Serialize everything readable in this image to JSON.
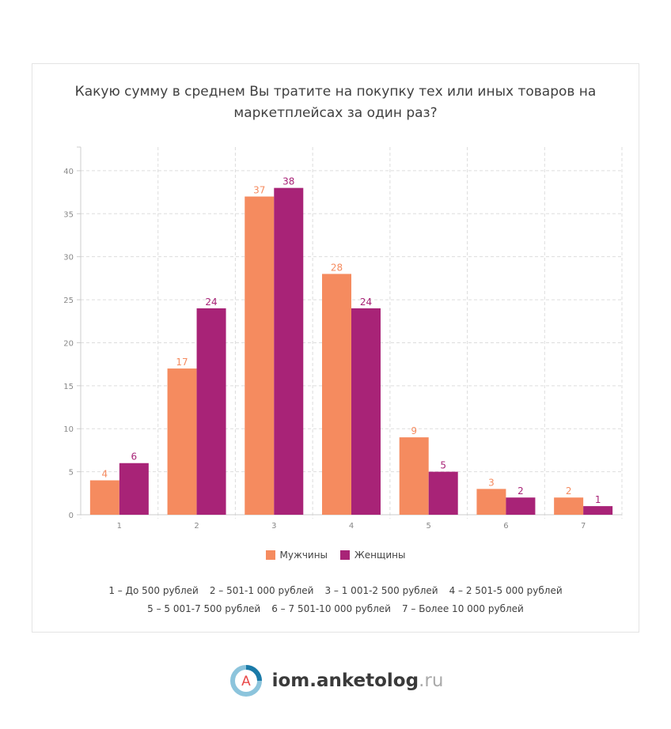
{
  "chart_data": {
    "type": "bar",
    "title": "Какую сумму в среднем Вы тратите на покупку тех или иных товаров на маркетплейсах за один раз?",
    "categories": [
      "1",
      "2",
      "3",
      "4",
      "5",
      "6",
      "7"
    ],
    "series": [
      {
        "name": "Мужчины",
        "color": "#f58b5f",
        "values": [
          4,
          17,
          37,
          28,
          9,
          3,
          2
        ]
      },
      {
        "name": "Женщины",
        "color": "#a82377",
        "values": [
          6,
          24,
          38,
          24,
          5,
          2,
          1
        ]
      }
    ],
    "yticks": [
      0,
      5,
      10,
      15,
      20,
      25,
      30,
      35,
      40
    ],
    "ylim": [
      0,
      42.75
    ],
    "grid": true,
    "legend": "bottom"
  },
  "notes": [
    "1 – До 500 рублей",
    "2 – 501-1 000 рублей",
    "3 – 1 001-2 500 рублей",
    "4 – 2 501-5 000 рублей",
    "5 – 5 001-7 500 рублей",
    "6 – 7 501-10 000 рублей",
    "7 – Более 10 000 рублей"
  ],
  "footer": {
    "brand": "iom.anketolog",
    "tld": ".ru",
    "logo_letter": "A"
  }
}
